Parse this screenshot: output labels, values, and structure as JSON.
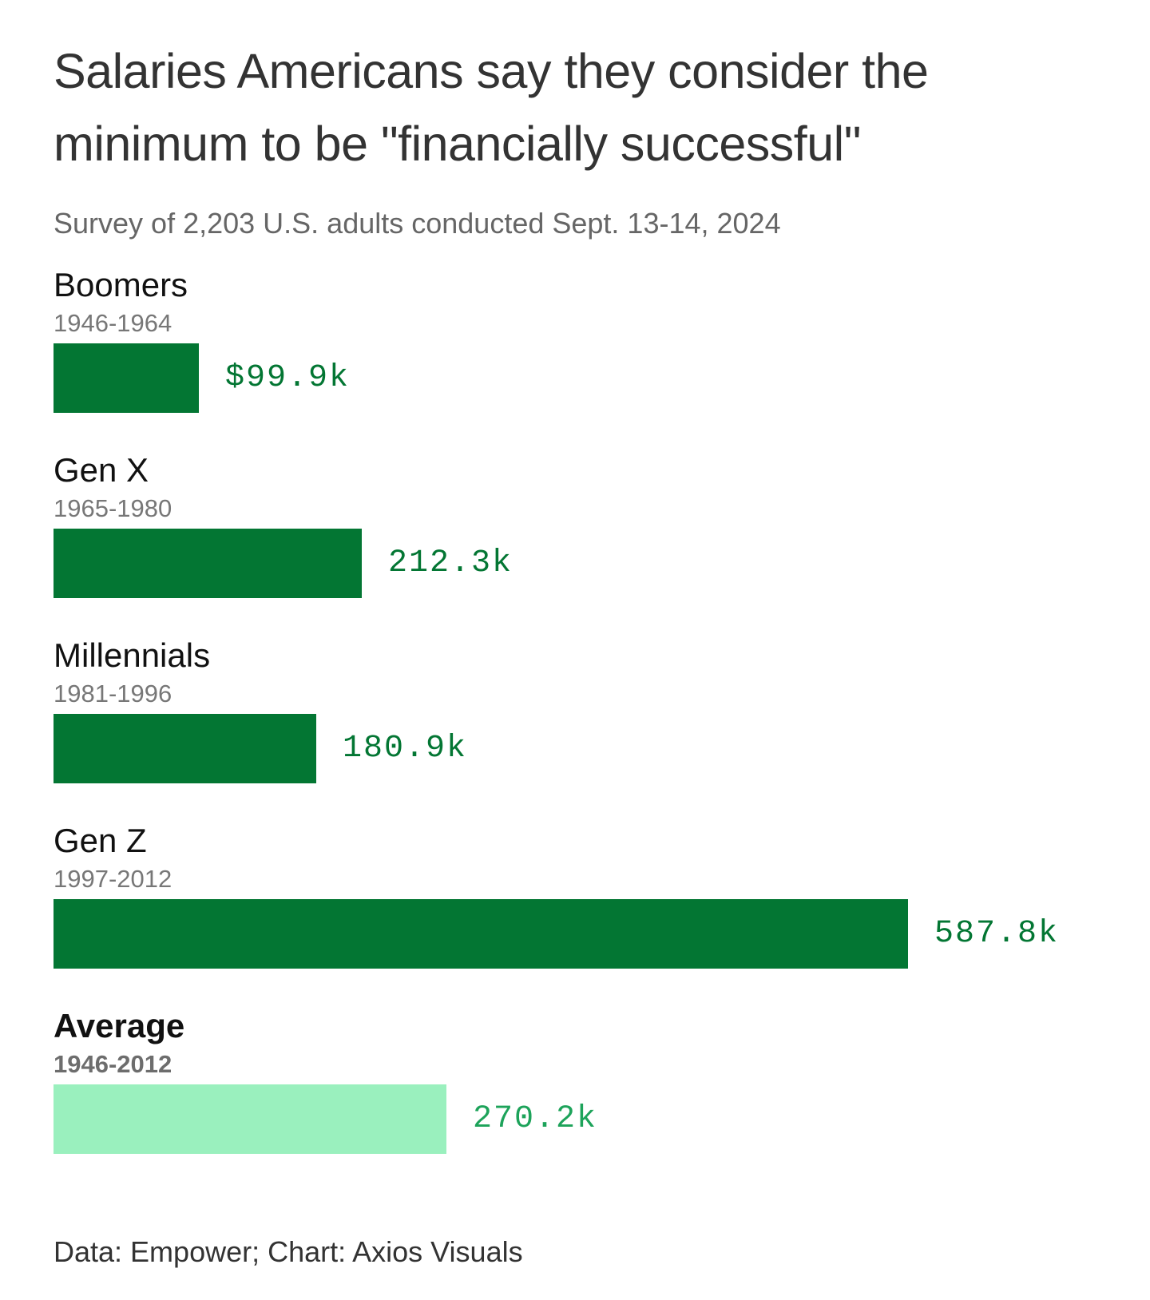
{
  "title": "Salaries Americans say they consider the minimum to be \"financially successful\"",
  "subtitle": "Survey of 2,203 U.S. adults conducted Sept. 13-14, 2024",
  "source": "Data: Empower; Chart: Axios Visuals",
  "colors": {
    "bar": "#037633",
    "bar_label": "#037633",
    "average_bar": "#9af0be",
    "average_label": "#1da35a"
  },
  "chart_data": {
    "type": "bar",
    "orientation": "horizontal",
    "title": "Salaries Americans say they consider the minimum to be \"financially successful\"",
    "subtitle": "Survey of 2,203 U.S. adults conducted Sept. 13-14, 2024",
    "unit": "thousand USD",
    "xlim": [
      0,
      587.8
    ],
    "grid": false,
    "legend": "none",
    "categories": [
      "Boomers",
      "Gen X",
      "Millennials",
      "Gen Z",
      "Average"
    ],
    "years": [
      "1946-1964",
      "1965-1980",
      "1981-1996",
      "1997-2012",
      "1946-2012"
    ],
    "values": [
      99.9,
      212.3,
      180.9,
      587.8,
      270.2
    ],
    "data_labels": [
      "$99.9k",
      "212.3k",
      "180.9k",
      "587.8k",
      "270.2k"
    ],
    "highlight": [
      "normal",
      "normal",
      "normal",
      "normal",
      "average"
    ]
  }
}
